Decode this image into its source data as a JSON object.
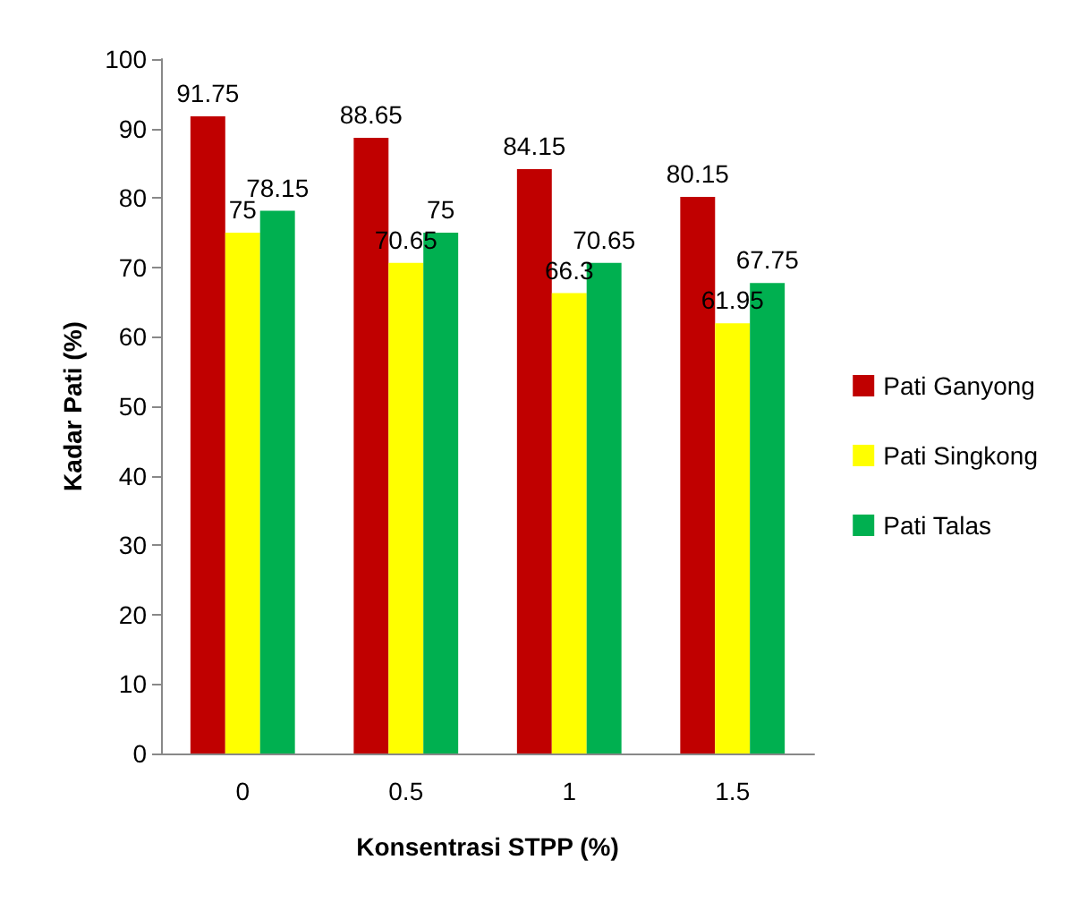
{
  "chart_data": {
    "type": "bar",
    "xlabel": "Konsentrasi STPP (%)",
    "ylabel": "Kadar Pati (%)",
    "categories": [
      "0",
      "0.5",
      "1",
      "1.5"
    ],
    "series": [
      {
        "name": "Pati Ganyong",
        "color": "#c00000",
        "values": [
          91.75,
          88.65,
          84.15,
          80.15
        ]
      },
      {
        "name": "Pati Singkong",
        "color": "#ffff00",
        "values": [
          75,
          70.65,
          66.3,
          61.95
        ]
      },
      {
        "name": "Pati Talas",
        "color": "#00b050",
        "values": [
          78.15,
          75,
          70.65,
          67.75
        ]
      }
    ],
    "ylim": [
      0,
      100
    ],
    "yticks": [
      0,
      10,
      20,
      30,
      40,
      50,
      60,
      70,
      80,
      90,
      100
    ],
    "grid": false,
    "legend": "right",
    "data_labels": true
  }
}
